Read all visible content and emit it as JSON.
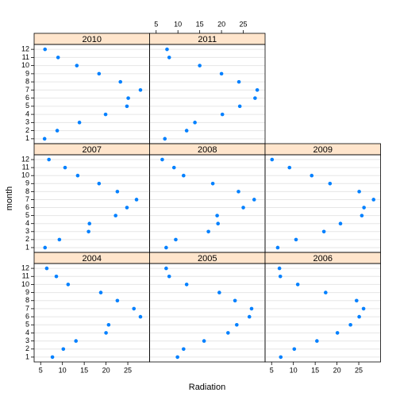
{
  "chart_data": {
    "type": "scatter",
    "xlabel": "Radiation",
    "ylabel": "month",
    "color": "#0080ff",
    "grid": true,
    "xlim": [
      3.5,
      30
    ],
    "xticks": [
      5,
      10,
      15,
      20,
      25
    ],
    "ylim": [
      0.4,
      12.6
    ],
    "yticks": [
      1,
      2,
      3,
      4,
      5,
      6,
      7,
      8,
      9,
      10,
      11,
      12
    ],
    "panels": [
      {
        "title": "2004",
        "x": [
          7.7,
          10.2,
          13.1,
          20,
          20.6,
          27.9,
          26.4,
          22.6,
          18.8,
          11.3,
          8.6,
          6.4
        ],
        "y": [
          1,
          2,
          3,
          4,
          5,
          6,
          7,
          8,
          9,
          10,
          11,
          12
        ]
      },
      {
        "title": "2005",
        "x": [
          9.9,
          11.3,
          16,
          21.5,
          23.5,
          26.4,
          26.9,
          23.1,
          19.5,
          12,
          8,
          7.3
        ],
        "y": [
          1,
          2,
          3,
          4,
          5,
          6,
          7,
          8,
          9,
          10,
          11,
          12
        ]
      },
      {
        "title": "2006",
        "x": [
          7.1,
          10.2,
          15.4,
          20.1,
          23.1,
          25.1,
          26.1,
          24.5,
          17.4,
          11,
          7,
          6.8
        ],
        "y": [
          1,
          2,
          3,
          4,
          5,
          6,
          7,
          8,
          9,
          10,
          11,
          12
        ]
      },
      {
        "title": "2007",
        "x": [
          6,
          9.3,
          16,
          16.2,
          22.2,
          24.8,
          27,
          22.6,
          18.4,
          13.5,
          10.6,
          6.9
        ],
        "y": [
          1,
          2,
          3,
          4,
          5,
          6,
          7,
          8,
          9,
          10,
          11,
          12
        ]
      },
      {
        "title": "2008",
        "x": [
          7.3,
          9.5,
          17,
          19.2,
          19,
          25,
          27.5,
          23.9,
          18,
          11.3,
          9.1,
          6.4
        ],
        "y": [
          1,
          2,
          3,
          4,
          5,
          6,
          7,
          8,
          9,
          10,
          11,
          12
        ]
      },
      {
        "title": "2009",
        "x": [
          6.4,
          10.6,
          17,
          20.8,
          25.7,
          26.2,
          28.4,
          25.1,
          18.4,
          14.2,
          9.1,
          5.1
        ],
        "y": [
          1,
          2,
          3,
          4,
          5,
          6,
          7,
          8,
          9,
          10,
          11,
          12
        ]
      },
      {
        "title": "2010",
        "x": [
          5.9,
          8.8,
          13.9,
          19.9,
          24.8,
          25.1,
          27.9,
          23.3,
          18.4,
          13.3,
          9,
          6
        ],
        "y": [
          1,
          2,
          3,
          4,
          5,
          6,
          7,
          8,
          9,
          10,
          11,
          12
        ]
      },
      {
        "title": "2011",
        "x": [
          7,
          12,
          13.9,
          20.2,
          24.2,
          27.7,
          28.2,
          24,
          20,
          15,
          8,
          7.5
        ],
        "y": [
          1,
          2,
          3,
          4,
          5,
          6,
          7,
          8,
          9,
          10,
          11,
          12
        ]
      }
    ]
  }
}
